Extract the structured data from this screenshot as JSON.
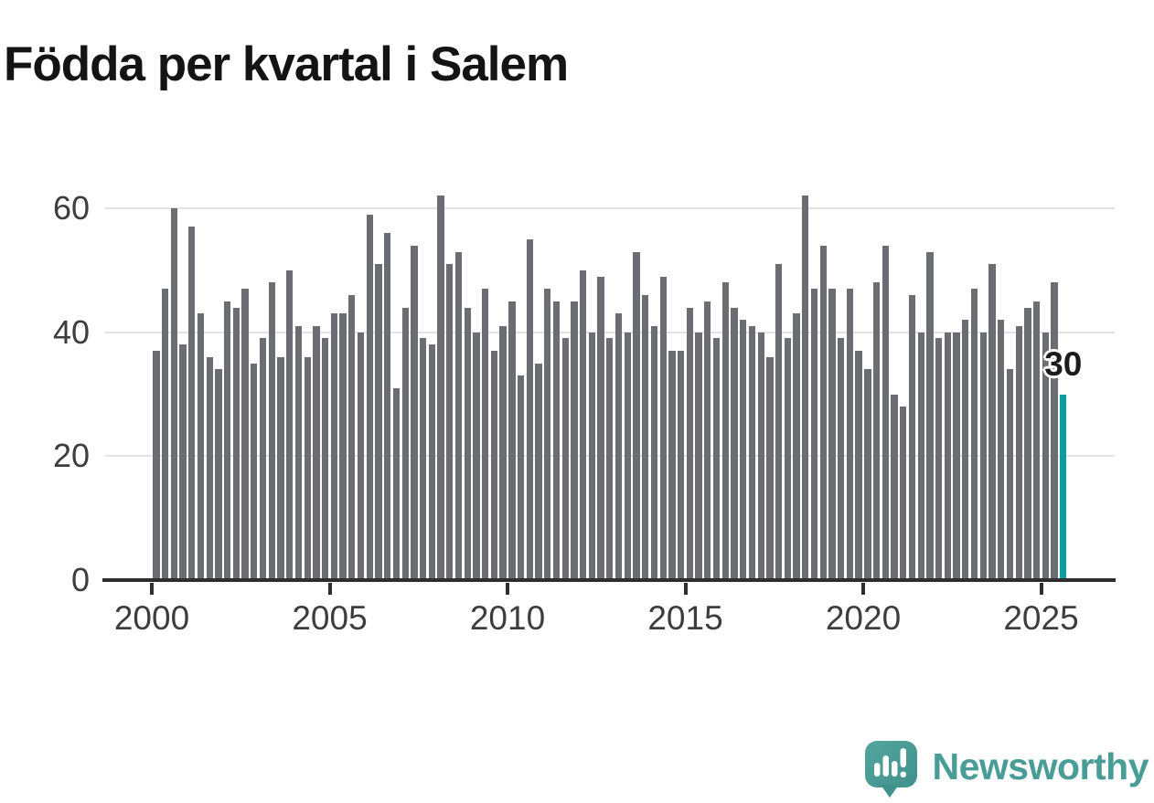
{
  "chart_data": {
    "type": "bar",
    "title": "Födda per kvartal i Salem",
    "x_unit": "quarter",
    "x_range": [
      "2000 Q1",
      "2025 Q3"
    ],
    "x_tick_years": [
      2000,
      2005,
      2010,
      2015,
      2020,
      2025
    ],
    "y_tick_values": [
      0,
      20,
      40,
      60
    ],
    "y_gridline_values": [
      20,
      40,
      60
    ],
    "ylim": [
      0,
      62.7
    ],
    "grid": "horizontal",
    "legend": "none",
    "bar_color": "#6c6c73",
    "highlight_color": "#0a9e9e",
    "values_by_year": {
      "2000": [
        37,
        47,
        60,
        38
      ],
      "2001": [
        57,
        43,
        36,
        34
      ],
      "2002": [
        45,
        44,
        47,
        35
      ],
      "2003": [
        39,
        48,
        36,
        50
      ],
      "2004": [
        41,
        36,
        41,
        39
      ],
      "2005": [
        43,
        43,
        46,
        40
      ],
      "2006": [
        59,
        51,
        56,
        31
      ],
      "2007": [
        44,
        54,
        39,
        38
      ],
      "2008": [
        62,
        51,
        53,
        44
      ],
      "2009": [
        40,
        47,
        37,
        41
      ],
      "2010": [
        45,
        33,
        55,
        35
      ],
      "2011": [
        47,
        45,
        39,
        45
      ],
      "2012": [
        50,
        40,
        49,
        39
      ],
      "2013": [
        43,
        40,
        53,
        46
      ],
      "2014": [
        41,
        49,
        37,
        37
      ],
      "2015": [
        44,
        40,
        45,
        39
      ],
      "2016": [
        48,
        44,
        42,
        41
      ],
      "2017": [
        40,
        36,
        51,
        39
      ],
      "2018": [
        43,
        62,
        47,
        54
      ],
      "2019": [
        47,
        39,
        47,
        37
      ],
      "2020": [
        34,
        48,
        54,
        30
      ],
      "2021": [
        28,
        46,
        40,
        53
      ],
      "2022": [
        39,
        40,
        40,
        42
      ],
      "2023": [
        47,
        40,
        51,
        42
      ],
      "2024": [
        34,
        41,
        44,
        45
      ],
      "2025": [
        40,
        48,
        30
      ]
    },
    "annotation": {
      "label": "30",
      "target": "2025 Q3"
    }
  },
  "footer": {
    "brand": "Newsworthy"
  }
}
